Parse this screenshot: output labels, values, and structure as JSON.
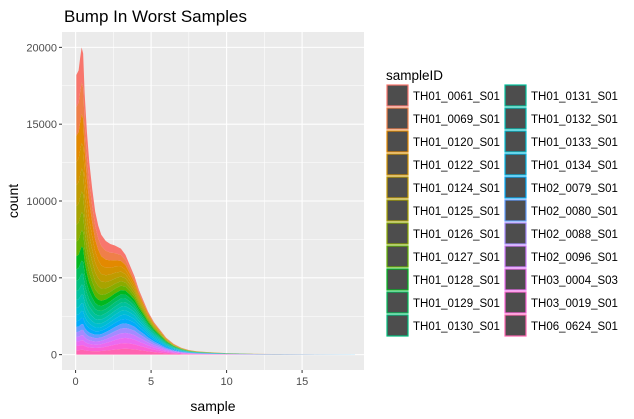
{
  "chart_data": {
    "type": "histogram",
    "stacked": true,
    "title": "Bump In Worst Samples",
    "xlabel": "sample",
    "ylabel": "count",
    "xlim": [
      -0.9,
      19.1
    ],
    "ylim": [
      -1000,
      21000
    ],
    "x_ticks": [
      0,
      5,
      10,
      15
    ],
    "y_ticks": [
      0,
      5000,
      10000,
      15000,
      20000
    ],
    "x_tick_labels": [
      "0",
      "5",
      "10",
      "15"
    ],
    "y_tick_labels": [
      "0",
      "5000",
      "10000",
      "15000",
      "20000"
    ],
    "grid": true,
    "panel_background": "#ebebeb",
    "grid_color": "#ffffff",
    "bar_fill": "#4d4d4d",
    "legend_position": "right",
    "legend_title": "sampleID",
    "legend_columns": 2,
    "total_envelope": {
      "x": [
        0.05,
        0.2,
        0.3,
        0.4,
        0.5,
        0.6,
        0.75,
        0.9,
        1.1,
        1.3,
        1.5,
        1.7,
        2.0,
        2.3,
        2.6,
        3.0,
        3.3,
        3.6,
        3.9,
        4.2,
        4.5,
        4.8,
        5.2,
        5.6,
        6.0,
        6.5,
        7.0,
        7.5,
        8.0,
        9.0,
        10.0,
        11.0,
        12.0,
        14.0,
        16.0,
        18.5
      ],
      "y": [
        18200,
        18500,
        19300,
        20000,
        19600,
        17000,
        14500,
        12600,
        10800,
        9300,
        8400,
        7800,
        7400,
        7200,
        7100,
        6900,
        6500,
        5800,
        5100,
        4200,
        3500,
        2800,
        2100,
        1600,
        1100,
        700,
        450,
        300,
        220,
        150,
        100,
        70,
        50,
        30,
        20,
        10
      ]
    },
    "series": [
      {
        "name": "TH01_0061_S01",
        "color": "#F8766D"
      },
      {
        "name": "TH01_0069_S01",
        "color": "#EF7F49"
      },
      {
        "name": "TH01_0120_S01",
        "color": "#E38900"
      },
      {
        "name": "TH01_0122_S01",
        "color": "#D39200"
      },
      {
        "name": "TH01_0124_S01",
        "color": "#C09B00"
      },
      {
        "name": "TH01_0125_S01",
        "color": "#A8A300"
      },
      {
        "name": "TH01_0126_S01",
        "color": "#8BAB00"
      },
      {
        "name": "TH01_0127_S01",
        "color": "#62B200"
      },
      {
        "name": "TH01_0128_S01",
        "color": "#00B81F"
      },
      {
        "name": "TH01_0129_S01",
        "color": "#00BC59"
      },
      {
        "name": "TH01_0130_S01",
        "color": "#00BF7D"
      },
      {
        "name": "TH01_0131_S01",
        "color": "#00C19C"
      },
      {
        "name": "TH01_0132_S01",
        "color": "#00C0B8"
      },
      {
        "name": "TH01_0133_S01",
        "color": "#00BDD1"
      },
      {
        "name": "TH01_0134_S01",
        "color": "#00B6E7"
      },
      {
        "name": "TH02_0079_S01",
        "color": "#00ABFB"
      },
      {
        "name": "TH02_0080_S01",
        "color": "#619CFF"
      },
      {
        "name": "TH02_0088_S01",
        "color": "#A58AFF"
      },
      {
        "name": "TH02_0096_S01",
        "color": "#CF78FF"
      },
      {
        "name": "TH03_0004_S03",
        "color": "#EB6AF0"
      },
      {
        "name": "TH03_0019_S01",
        "color": "#FC61D5"
      },
      {
        "name": "TH06_0624_S01",
        "color": "#FF64B0"
      }
    ]
  }
}
